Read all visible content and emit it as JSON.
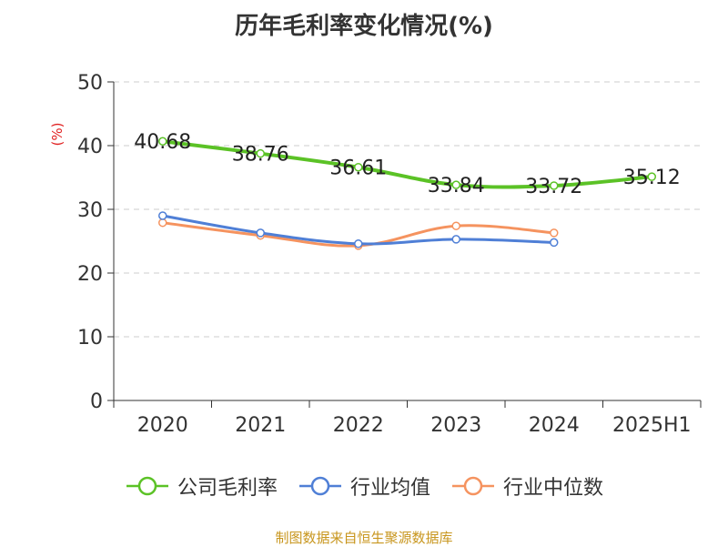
{
  "title": "历年毛利率变化情况(%)",
  "source": "制图数据来自恒生聚源数据库",
  "colors": {
    "company": "#5bc226",
    "industry_avg": "#4f7fd6",
    "industry_median": "#f5935f",
    "ylabel": "#e02020",
    "source": "#c8961e",
    "axis": "#333333",
    "grid": "#cccccc"
  },
  "chart_data": {
    "type": "line",
    "title": "历年毛利率变化情况(%)",
    "xlabel": "",
    "ylabel": "(%)",
    "ylim": [
      0,
      50
    ],
    "yticks": [
      0,
      10,
      20,
      30,
      40,
      50
    ],
    "categories": [
      "2020",
      "2021",
      "2022",
      "2023",
      "2024",
      "2025H1"
    ],
    "grid": true,
    "legend_position": "bottom",
    "series": [
      {
        "name": "公司毛利率",
        "key": "company",
        "values": [
          40.68,
          38.76,
          36.61,
          33.84,
          33.72,
          35.12
        ],
        "data_labels": [
          "40.68",
          "38.76",
          "36.61",
          "33.84",
          "33.72",
          "35.12"
        ]
      },
      {
        "name": "行业均值",
        "key": "industry_avg",
        "values": [
          29.0,
          26.3,
          24.6,
          25.3,
          24.8,
          null
        ]
      },
      {
        "name": "行业中位数",
        "key": "industry_median",
        "values": [
          27.9,
          25.9,
          24.3,
          27.4,
          26.3,
          null
        ]
      }
    ]
  }
}
